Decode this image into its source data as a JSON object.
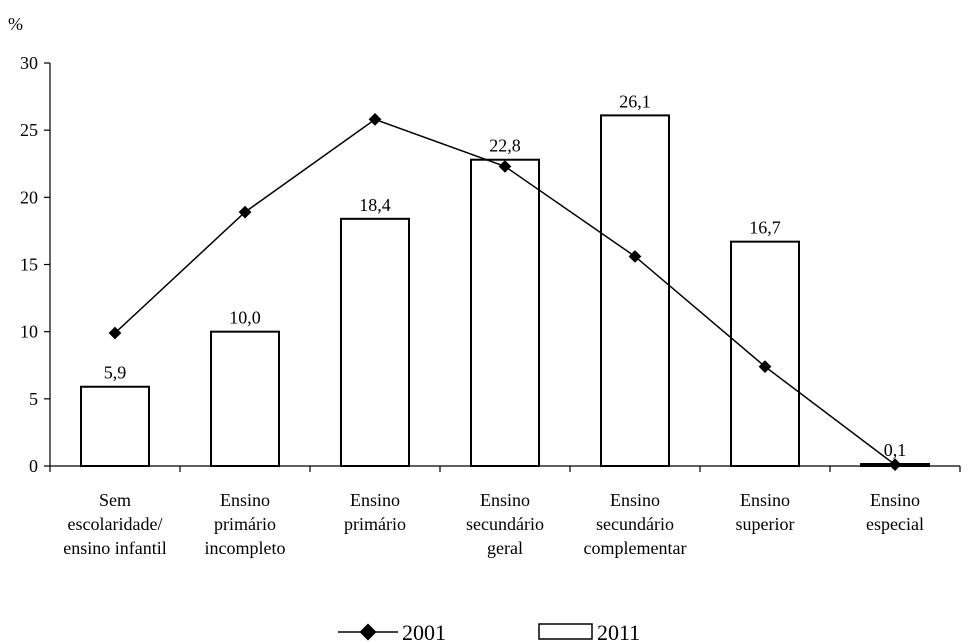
{
  "chart_data": {
    "type": "bar",
    "ylabel": "%",
    "ylim": [
      0,
      30
    ],
    "yticks": [
      "0",
      "5",
      "10",
      "15",
      "20",
      "25",
      "30"
    ],
    "categories": [
      [
        "Sem",
        "escolaridade/",
        "ensino infantil"
      ],
      [
        "Ensino",
        "primário",
        "incompleto"
      ],
      [
        "Ensino",
        "primário"
      ],
      [
        "Ensino",
        "secundário",
        "geral"
      ],
      [
        "Ensino",
        "secundário",
        "complementar"
      ],
      [
        "Ensino",
        "superior"
      ],
      [
        "Ensino",
        "especial"
      ]
    ],
    "series": [
      {
        "name": "2001",
        "type": "line",
        "values": [
          9.9,
          18.9,
          25.8,
          22.3,
          15.6,
          7.4,
          0.1
        ]
      },
      {
        "name": "2011",
        "type": "bar",
        "values": [
          5.9,
          10.0,
          18.4,
          22.8,
          26.1,
          16.7,
          0.1
        ],
        "data_labels": [
          "5,9",
          "10,0",
          "18,4",
          "22,8",
          "26,1",
          "16,7",
          "0,1"
        ]
      }
    ],
    "legend_position": "bottom",
    "grid": false
  }
}
